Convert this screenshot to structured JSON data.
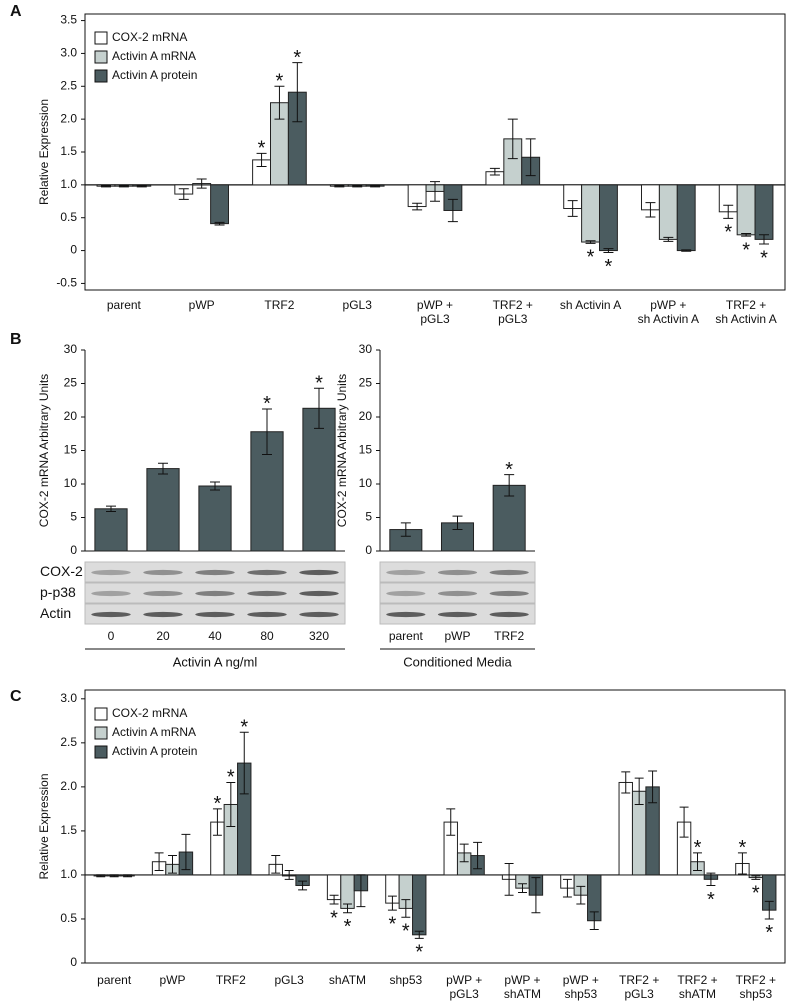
{
  "panel_labels": [
    "A",
    "B",
    "C"
  ],
  "chart_data": [
    {
      "type": "bar",
      "ylabel": "Relative Expression",
      "legend": "upper left",
      "baseline": 1,
      "ylim": [
        -0.6,
        3.6
      ],
      "yticks": [
        -0.5,
        0,
        0.5,
        {
          "value": 1,
          "label": "1.0"
        },
        1.5,
        {
          "value": 2,
          "label": "2.0"
        },
        2.5,
        {
          "value": 3,
          "label": "3.0"
        },
        3.5
      ],
      "categories": [
        "parent",
        "pWP",
        "TRF2",
        "pGL3",
        "pWP +\npGL3",
        "TRF2 +\npGL3",
        "sh Activin A",
        "pWP +\nsh Activin A",
        "TRF2 +\nsh Activin A"
      ],
      "series": [
        {
          "name": "COX-2 mRNA",
          "color": "#ffffff",
          "values": [
            0.98,
            0.86,
            1.38,
            0.98,
            0.67,
            1.2,
            0.64,
            0.62,
            0.59
          ],
          "errors": [
            0.01,
            0.08,
            0.1,
            0.01,
            0.05,
            0.05,
            0.12,
            0.11,
            0.1
          ]
        },
        {
          "name": "Activin A mRNA",
          "color": "#c5d0ce",
          "values": [
            0.98,
            1.02,
            2.25,
            0.98,
            0.9,
            1.7,
            0.13,
            0.17,
            0.24
          ],
          "errors": [
            0.01,
            0.07,
            0.25,
            0.01,
            0.15,
            0.3,
            0.02,
            0.03,
            0.02
          ]
        },
        {
          "name": "Activin A protein",
          "color": "#4b5c60",
          "values": [
            0.98,
            0.41,
            2.41,
            0.98,
            0.61,
            1.42,
            0.0,
            0.0,
            0.17
          ],
          "errors": [
            0.01,
            0.02,
            0.45,
            0.01,
            0.17,
            0.28,
            0.03,
            0.01,
            0.07
          ]
        }
      ],
      "annotations": [
        {
          "text": "*",
          "category": "TRF2",
          "series": "COX-2 mRNA"
        },
        {
          "text": "*",
          "category": "TRF2",
          "series": "Activin A mRNA"
        },
        {
          "text": "*",
          "category": "TRF2",
          "series": "Activin A protein"
        },
        {
          "text": "*",
          "category": "sh Activin A",
          "series": "Activin A mRNA"
        },
        {
          "text": "*",
          "category": "sh Activin A",
          "series": "Activin A protein"
        },
        {
          "text": "*",
          "category": "TRF2 +\nsh Activin A",
          "series": "COX-2 mRNA"
        },
        {
          "text": "*",
          "category": "TRF2 +\nsh Activin A",
          "series": "Activin A mRNA"
        },
        {
          "text": "*",
          "category": "TRF2 +\nsh Activin A",
          "series": "Activin A protein"
        }
      ]
    },
    {
      "type": "bar",
      "ylabel": "COX-2 mRNA Arbitrary Units",
      "xlabel": "Activin A ng/ml",
      "color": "#4b5c60",
      "ylim": [
        0,
        30
      ],
      "yticks": [
        0,
        5,
        10,
        15,
        20,
        25,
        30
      ],
      "categories": [
        "0",
        "20",
        "40",
        "80",
        "320"
      ],
      "values": [
        6.3,
        12.3,
        9.7,
        17.8,
        21.3
      ],
      "errors": [
        0.4,
        0.8,
        0.6,
        3.4,
        3.0
      ],
      "blot_labels": [
        "COX-2",
        "p-p38",
        "Actin"
      ],
      "annotations": [
        {
          "text": "*",
          "category": "80"
        },
        {
          "text": "*",
          "category": "320"
        }
      ]
    },
    {
      "type": "bar",
      "ylabel": "COX-2 mRNA Arbitrary Units",
      "xlabel": "Conditioned Media",
      "color": "#4b5c60",
      "ylim": [
        0,
        30
      ],
      "yticks": [
        0,
        5,
        10,
        15,
        20,
        25,
        30
      ],
      "categories": [
        "parent",
        "pWP",
        "TRF2"
      ],
      "values": [
        3.2,
        4.2,
        9.8
      ],
      "errors": [
        1.0,
        1.0,
        1.6
      ],
      "annotations": [
        {
          "text": "*",
          "category": "TRF2"
        }
      ]
    },
    {
      "type": "bar",
      "ylabel": "Relative Expression",
      "legend": "upper left",
      "baseline": 1,
      "ylim": [
        0,
        3.1
      ],
      "yticks": [
        0,
        0.5,
        {
          "value": 1,
          "label": "1.0"
        },
        1.5,
        {
          "value": 2,
          "label": "2.0"
        },
        2.5,
        {
          "value": 3,
          "label": "3.0"
        }
      ],
      "categories": [
        "parent",
        "pWP",
        "TRF2",
        "pGL3",
        "shATM",
        "shp53",
        "pWP +\npGL3",
        "pWP +\nshATM",
        "pWP +\nshp53",
        "TRF2 +\npGL3",
        "TRF2 +\nshATM",
        "TRF2 +\nshp53"
      ],
      "series": [
        {
          "name": "COX-2 mRNA",
          "color": "#ffffff",
          "values": [
            0.99,
            1.15,
            1.6,
            1.12,
            0.72,
            0.68,
            1.6,
            0.95,
            0.85,
            2.05,
            1.6,
            1.13
          ],
          "errors": [
            0.01,
            0.1,
            0.15,
            0.1,
            0.05,
            0.08,
            0.15,
            0.18,
            0.1,
            0.12,
            0.17,
            0.12
          ]
        },
        {
          "name": "Activin A mRNA",
          "color": "#c5d0ce",
          "values": [
            0.99,
            1.12,
            1.8,
            1.0,
            0.62,
            0.62,
            1.25,
            0.85,
            0.77,
            1.95,
            1.15,
            0.97
          ],
          "errors": [
            0.01,
            0.1,
            0.25,
            0.05,
            0.05,
            0.1,
            0.1,
            0.05,
            0.1,
            0.15,
            0.1,
            0.02
          ]
        },
        {
          "name": "Activin A protein",
          "color": "#4b5c60",
          "values": [
            0.99,
            1.26,
            2.27,
            0.88,
            0.82,
            0.32,
            1.22,
            0.77,
            0.48,
            2.0,
            0.95,
            0.6
          ],
          "errors": [
            0.01,
            0.2,
            0.35,
            0.05,
            0.18,
            0.04,
            0.15,
            0.2,
            0.1,
            0.18,
            0.07,
            0.1
          ]
        }
      ],
      "annotations": [
        {
          "text": "*",
          "category": "TRF2",
          "series": "COX-2 mRNA"
        },
        {
          "text": "*",
          "category": "TRF2",
          "series": "Activin A mRNA"
        },
        {
          "text": "*",
          "category": "TRF2",
          "series": "Activin A protein"
        },
        {
          "text": "*",
          "category": "shATM",
          "series": "COX-2 mRNA"
        },
        {
          "text": "*",
          "category": "shATM",
          "series": "Activin A mRNA"
        },
        {
          "text": "*",
          "category": "shp53",
          "series": "COX-2 mRNA"
        },
        {
          "text": "*",
          "category": "shp53",
          "series": "Activin A mRNA"
        },
        {
          "text": "*",
          "category": "shp53",
          "series": "Activin A protein"
        },
        {
          "text": "*",
          "category": "TRF2 +\nshATM",
          "series": "Activin A mRNA"
        },
        {
          "text": "*",
          "category": "TRF2 +\nshATM",
          "series": "Activin A protein"
        },
        {
          "text": "*",
          "category": "TRF2 +\nshp53",
          "series": "COX-2 mRNA"
        },
        {
          "text": "*",
          "category": "TRF2 +\nshp53",
          "series": "Activin A mRNA"
        },
        {
          "text": "*",
          "category": "TRF2 +\nshp53",
          "series": "Activin A protein"
        }
      ]
    }
  ]
}
